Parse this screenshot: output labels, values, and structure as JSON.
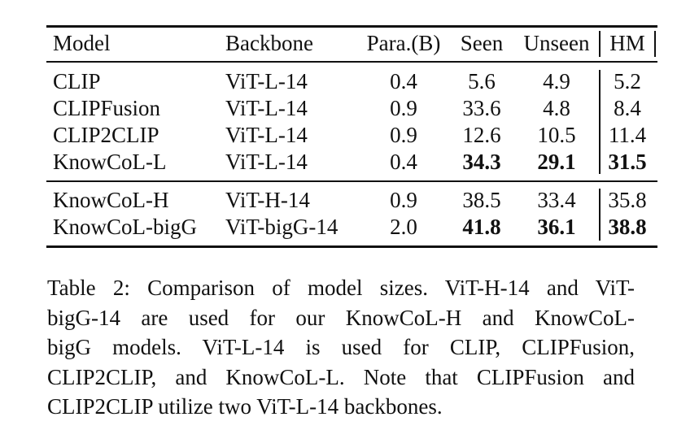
{
  "table": {
    "headers": {
      "model": "Model",
      "backbone": "Backbone",
      "para": "Para.(B)",
      "seen": "Seen",
      "unseen": "Unseen",
      "hm": "HM"
    },
    "group1": [
      {
        "model": "CLIP",
        "backbone": "ViT-L-14",
        "para": "0.4",
        "seen": "5.6",
        "unseen": "4.9",
        "hm": "5.2"
      },
      {
        "model": "CLIPFusion",
        "backbone": "ViT-L-14",
        "para": "0.9",
        "seen": "33.6",
        "unseen": "4.8",
        "hm": "8.4"
      },
      {
        "model": "CLIP2CLIP",
        "backbone": "ViT-L-14",
        "para": "0.9",
        "seen": "12.6",
        "unseen": "10.5",
        "hm": "11.4"
      },
      {
        "model": "KnowCoL-L",
        "backbone": "ViT-L-14",
        "para": "0.4",
        "seen": "34.3",
        "unseen": "29.1",
        "hm": "31.5"
      }
    ],
    "group2": [
      {
        "model": "KnowCoL-H",
        "backbone": "ViT-H-14",
        "para": "0.9",
        "seen": "38.5",
        "unseen": "33.4",
        "hm": "35.8"
      },
      {
        "model": "KnowCoL-bigG",
        "backbone": "ViT-bigG-14",
        "para": "2.0",
        "seen": "41.8",
        "unseen": "36.1",
        "hm": "38.8"
      }
    ]
  },
  "caption": {
    "lines": [
      "Table 2: Comparison of model sizes. ViT-H-14 and ViT-",
      "bigG-14 are used for our KnowCoL-H and KnowCoL-",
      "bigG models. ViT-L-14 is used for CLIP, CLIPFusion,",
      "CLIP2CLIP, and KnowCoL-L. Note that CLIPFusion and",
      "CLIP2CLIP utilize two ViT-L-14 backbones."
    ]
  }
}
